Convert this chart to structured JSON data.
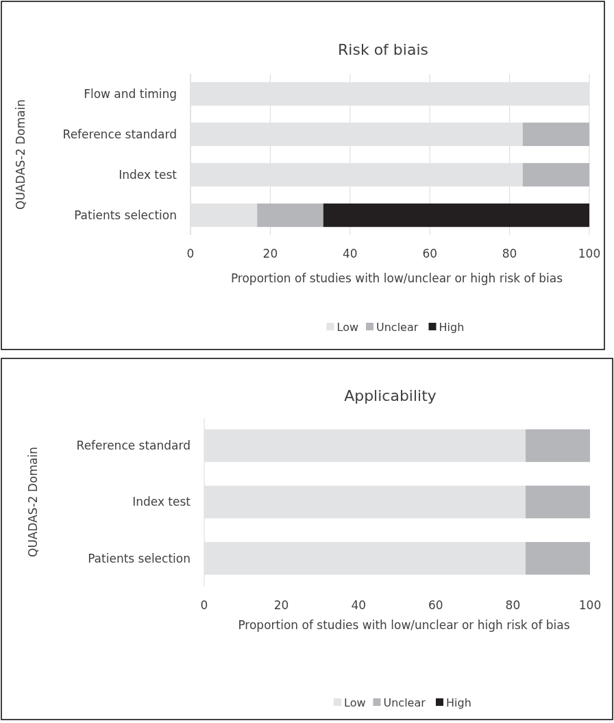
{
  "chart_data": [
    {
      "type": "bar",
      "orientation": "horizontal",
      "stacked": true,
      "title": "Risk of biais",
      "xlabel": "Proportion of studies with low/unclear or high risk of bias",
      "ylabel": "QUADAS-2 Domain",
      "categories": [
        "Flow and timing",
        "Reference standard",
        "Index test",
        "Patients selection"
      ],
      "series": [
        {
          "name": "Low",
          "color": "#e2e3e5",
          "values": [
            100,
            83.3,
            83.3,
            16.7
          ]
        },
        {
          "name": "Unclear",
          "color": "#b5b6ba",
          "values": [
            0,
            16.7,
            16.7,
            16.6
          ]
        },
        {
          "name": "High",
          "color": "#231f20",
          "values": [
            0,
            0,
            0,
            66.7
          ]
        }
      ],
      "xlim": [
        0,
        100
      ],
      "xticks": [
        0,
        20,
        40,
        60,
        80,
        100
      ],
      "grid": "x",
      "legend": "bottom"
    },
    {
      "type": "bar",
      "orientation": "horizontal",
      "stacked": true,
      "title": "Applicability",
      "xlabel": "Proportion of studies with low/unclear or high risk of bias",
      "ylabel": "QUADAS-2 Domain",
      "categories": [
        "Reference standard",
        "Index test",
        "Patients selection"
      ],
      "series": [
        {
          "name": "Low",
          "color": "#e2e3e5",
          "values": [
            83.3,
            83.3,
            83.3
          ]
        },
        {
          "name": "Unclear",
          "color": "#b5b6ba",
          "values": [
            16.7,
            16.7,
            16.7
          ]
        },
        {
          "name": "High",
          "color": "#231f20",
          "values": [
            0,
            0,
            0
          ]
        }
      ],
      "xlim": [
        0,
        100
      ],
      "xticks": [
        0,
        20,
        40,
        60,
        80,
        100
      ],
      "grid": false,
      "legend": "bottom"
    }
  ]
}
